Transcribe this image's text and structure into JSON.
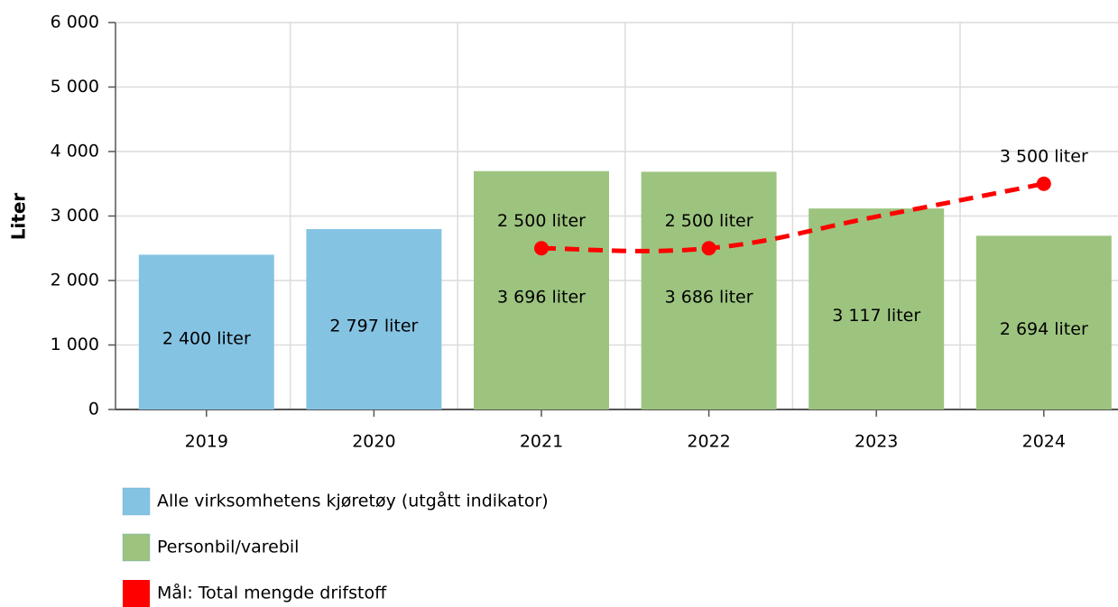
{
  "chart_data": {
    "type": "bar",
    "y_label": "Liter",
    "categories": [
      "2019",
      "2020",
      "2021",
      "2022",
      "2023",
      "2024"
    ],
    "series": [
      {
        "name": "Alle virksomhetens kjøretøy (utgått indikator)",
        "color": "#85c3e3",
        "type": "bar",
        "values": [
          2400,
          2797,
          null,
          null,
          null,
          null
        ],
        "value_labels": [
          "2 400 liter",
          "2 797 liter",
          null,
          null,
          null,
          null
        ]
      },
      {
        "name": "Personbil/varebil",
        "color": "#9dc47f",
        "type": "bar",
        "values": [
          null,
          null,
          3696,
          3686,
          3117,
          2694
        ],
        "value_labels": [
          null,
          null,
          "3 696 liter",
          "3 686 liter",
          "3 117 liter",
          "2 694 liter"
        ]
      },
      {
        "name": "Mål: Total mengde drifstoff",
        "color": "#ff0000",
        "type": "line",
        "values": [
          null,
          null,
          2500,
          2500,
          2990,
          3500
        ],
        "value_labels": [
          null,
          null,
          "2 500 liter",
          "2 500 liter",
          null,
          "3 500 liter"
        ]
      }
    ],
    "ylim": [
      0,
      6000
    ],
    "yticks": [
      0,
      {
        "value": 1000,
        "label": "1 000"
      },
      {
        "value": 2000,
        "label": "2 000"
      },
      {
        "value": 3000,
        "label": "3 000"
      },
      {
        "value": 4000,
        "label": "4 000"
      },
      {
        "value": 5000,
        "label": "5 000"
      },
      {
        "value": 6000,
        "label": "6 000"
      }
    ],
    "grid": true
  }
}
